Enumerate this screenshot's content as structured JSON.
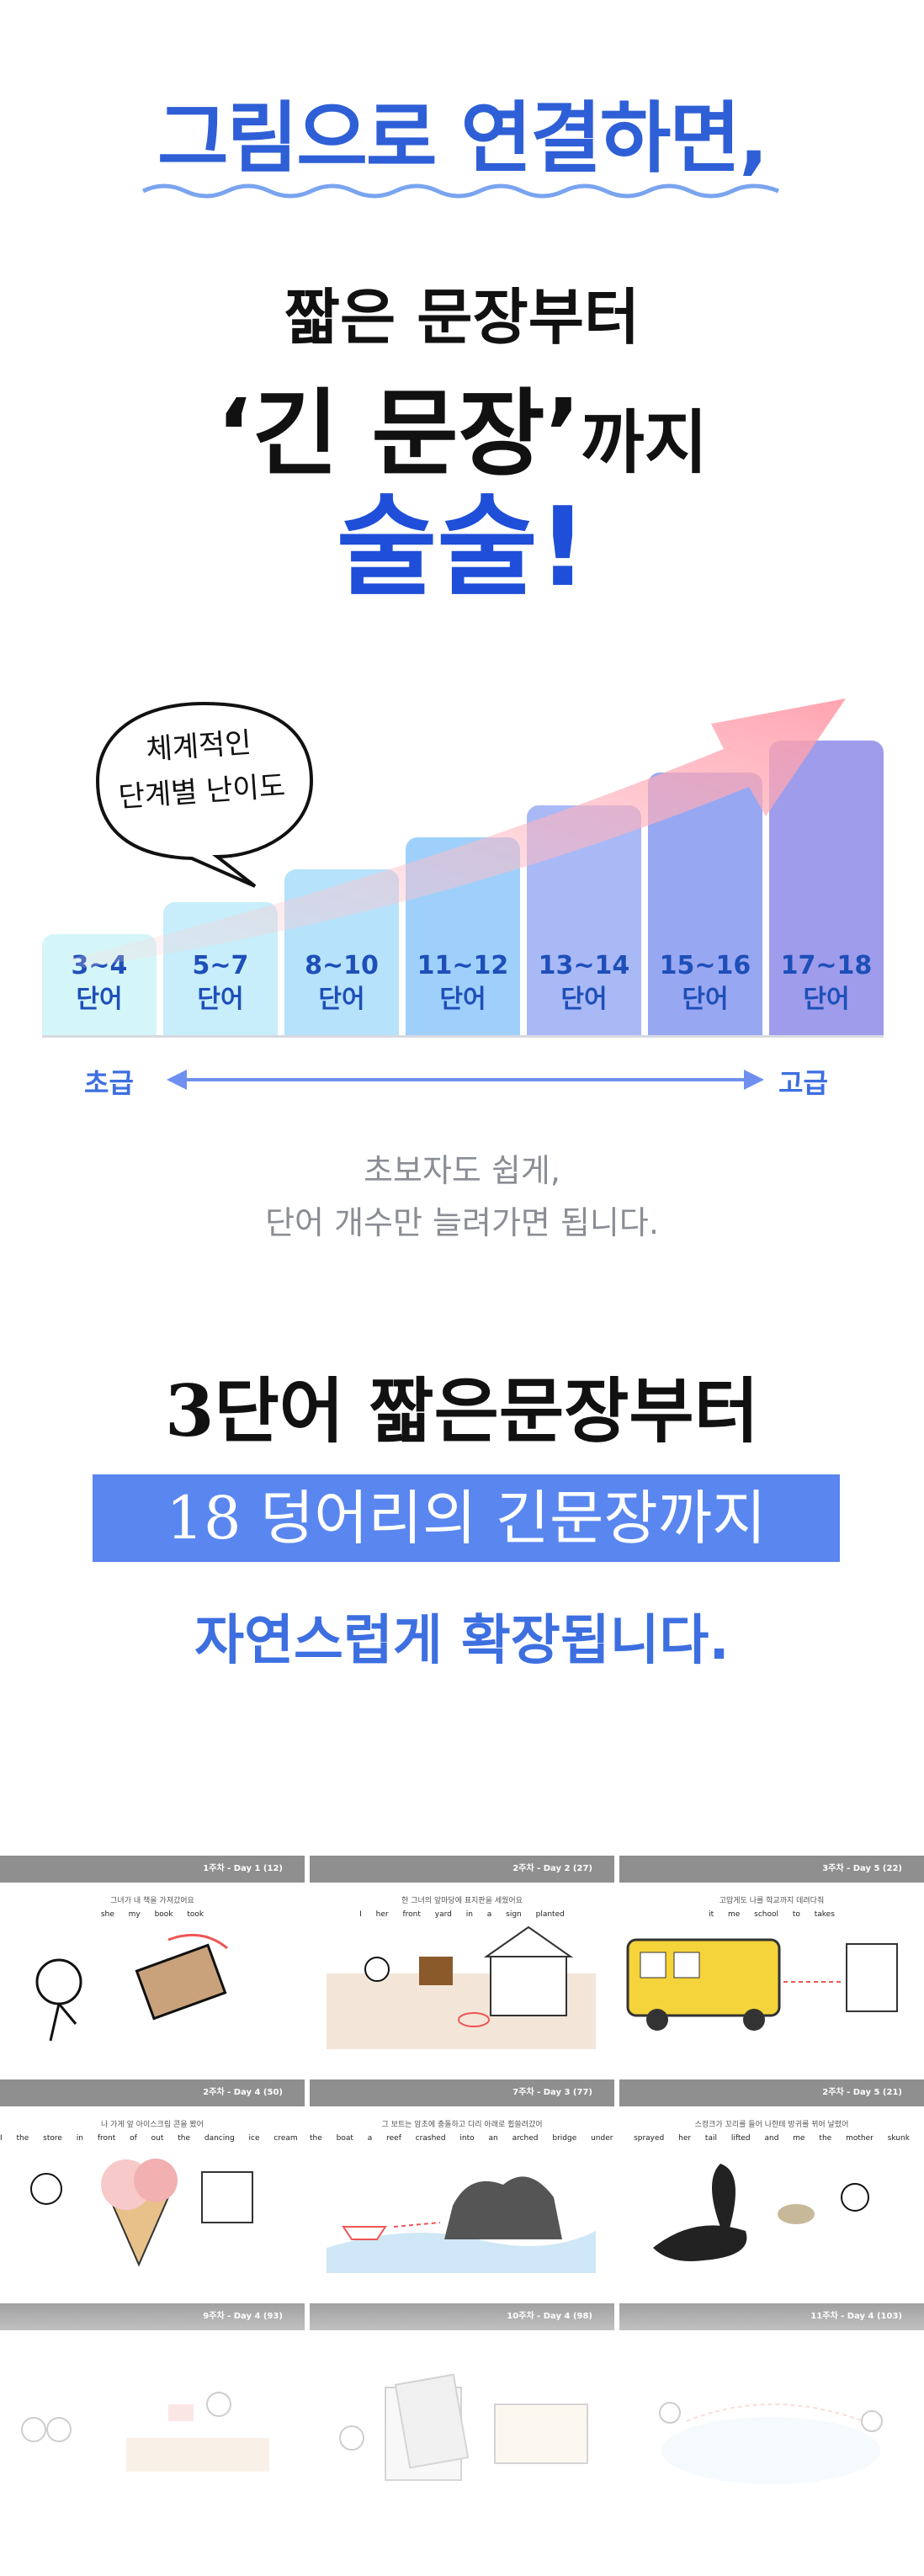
{
  "hero": {
    "title": "그림으로 연결하면,",
    "line1": "짧은 문장부터",
    "line2_main": "‘긴 문장’",
    "line2_suffix": "까지",
    "line3": "술술!"
  },
  "bubble": {
    "line1": "체계적인",
    "line2": "단계별 난이도"
  },
  "chart_data": {
    "type": "bar",
    "categories": [
      "3~4 단어",
      "5~7 단어",
      "8~10 단어",
      "11~12 단어",
      "13~14 단어",
      "15~16 단어",
      "17~18 단어"
    ],
    "levels": [
      {
        "top": "3~4",
        "bottom": "단어"
      },
      {
        "top": "5~7",
        "bottom": "단어"
      },
      {
        "top": "8~10",
        "bottom": "단어"
      },
      {
        "top": "11~12",
        "bottom": "단어"
      },
      {
        "top": "13~14",
        "bottom": "단어"
      },
      {
        "top": "15~16",
        "bottom": "단어"
      },
      {
        "top": "17~18",
        "bottom": "단어"
      }
    ],
    "values": [
      1,
      2,
      3,
      4,
      5,
      6,
      7
    ],
    "colors": [
      "#d5f6f8",
      "#c7eefa",
      "#b6e2fb",
      "#9fd0fb",
      "#a9b9f6",
      "#98a7f2",
      "#9e9ceb"
    ],
    "axis_start": "초급",
    "axis_end": "고급"
  },
  "description": {
    "line1": "초보자도 쉽게,",
    "line2": "단어 개수만 늘려가면 됩니다."
  },
  "summary": {
    "line1": "3단어 짧은문장부터",
    "line2": "18 덩어리의 긴문장까지",
    "line3": "자연스럽게 확장됩니다."
  },
  "cards": [
    {
      "head": "1주차 - Day 1  (12)",
      "kor": "그녀가 내 책을 가져갔어요",
      "words": "she  my book  took"
    },
    {
      "head": "2주차 - Day 2  (27)",
      "kor": "한 그녀의 앞마당에 표지판을 세웠어요",
      "words": "I  her front yard  in  a sign  planted"
    },
    {
      "head": "3주차 - Day 5  (22)",
      "kor": "고맙게도 나를 학교까지 데려다줘",
      "words": "it  me  school  to  takes"
    },
    {
      "head": "2주차 - Day 4  (50)",
      "kor": "나 가게 앞 아이스크림 콘을 봤어",
      "words": "I  the store  in front of  out  the dancing ice cream cone  saw"
    },
    {
      "head": "7주차 - Day 3  (77)",
      "kor": "그 보트는 암초에 충돌하고 다리 아래로 휩쓸려갔어",
      "words": "the boat  a reef  crashed  into  an arched bridge  under  and shot"
    },
    {
      "head": "2주차 - Day 5  (21)",
      "kor": "스컹크가 꼬리를 들어 나한테 방귀를 뀌어 날렸어",
      "words": "sprayed  her tail  lifted  and  me  the mother skunk"
    },
    {
      "head": "9주차 - Day 4  (93)",
      "kor": "",
      "words": ""
    },
    {
      "head": "10주차 - Day 4  (98)",
      "kor": "",
      "words": ""
    },
    {
      "head": "11주차 - Day 4  (103)",
      "kor": "",
      "words": ""
    }
  ]
}
